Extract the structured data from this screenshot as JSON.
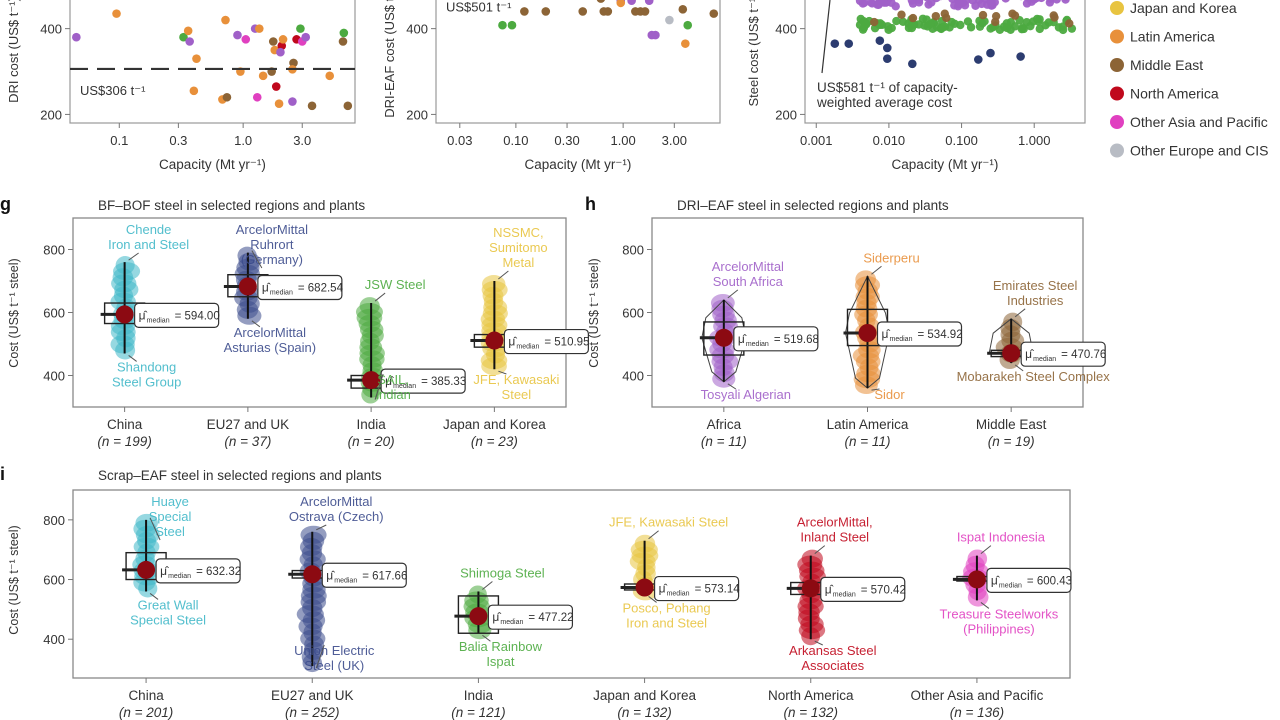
{
  "legend": {
    "items": [
      {
        "label": "Japan and Korea",
        "color": "#e8c440"
      },
      {
        "label": "Latin America",
        "color": "#e8903a"
      },
      {
        "label": "Middle East",
        "color": "#8c6436"
      },
      {
        "label": "North America",
        "color": "#c0081c"
      },
      {
        "label": "Other Asia and Pacific",
        "color": "#e040c0"
      },
      {
        "label": "Other Europe and CIS",
        "color": "#b8bcc4"
      }
    ]
  },
  "chart_data": [
    {
      "id": "d",
      "type": "scatter",
      "title": "",
      "xlabel": "Capacity (Mt yr⁻¹)",
      "ylabel": "DRI cost (US$ t⁻¹)",
      "xscale": "log",
      "xlim": [
        0.04,
        8
      ],
      "xticks": [
        "0.1",
        "0.3",
        "1.0",
        "3.0"
      ],
      "xtick_values": [
        0.1,
        0.3,
        1.0,
        3.0
      ],
      "ylim": [
        180,
        560
      ],
      "yticks": [
        200,
        400
      ],
      "reference_line": {
        "value": 306,
        "label": "US$306 t⁻¹"
      },
      "points": [
        {
          "x": 0.045,
          "y": 380,
          "c": "#a060c8"
        },
        {
          "x": 0.095,
          "y": 435,
          "c": "#e8903a"
        },
        {
          "x": 0.33,
          "y": 480,
          "c": "#40b8c8"
        },
        {
          "x": 0.62,
          "y": 480,
          "c": "#2c3c70"
        },
        {
          "x": 0.33,
          "y": 380,
          "c": "#4caa40"
        },
        {
          "x": 0.36,
          "y": 395,
          "c": "#e8903a"
        },
        {
          "x": 0.37,
          "y": 370,
          "c": "#a060c8"
        },
        {
          "x": 0.42,
          "y": 330,
          "c": "#e8903a"
        },
        {
          "x": 0.4,
          "y": 255,
          "c": "#e8903a"
        },
        {
          "x": 0.72,
          "y": 420,
          "c": "#e8903a"
        },
        {
          "x": 0.68,
          "y": 235,
          "c": "#e8903a"
        },
        {
          "x": 0.74,
          "y": 240,
          "c": "#8c6436"
        },
        {
          "x": 0.9,
          "y": 385,
          "c": "#a060c8"
        },
        {
          "x": 0.95,
          "y": 300,
          "c": "#e8903a"
        },
        {
          "x": 1.05,
          "y": 375,
          "c": "#e040c0"
        },
        {
          "x": 1.25,
          "y": 400,
          "c": "#a060c8"
        },
        {
          "x": 1.35,
          "y": 400,
          "c": "#e8903a"
        },
        {
          "x": 1.3,
          "y": 240,
          "c": "#e040c0"
        },
        {
          "x": 1.45,
          "y": 290,
          "c": "#e8903a"
        },
        {
          "x": 1.7,
          "y": 300,
          "c": "#8c6436"
        },
        {
          "x": 1.75,
          "y": 370,
          "c": "#8c6436"
        },
        {
          "x": 1.8,
          "y": 350,
          "c": "#e8903a"
        },
        {
          "x": 1.85,
          "y": 265,
          "c": "#c0081c"
        },
        {
          "x": 1.95,
          "y": 225,
          "c": "#e8903a"
        },
        {
          "x": 2.05,
          "y": 360,
          "c": "#c0081c"
        },
        {
          "x": 2.0,
          "y": 345,
          "c": "#a060c8"
        },
        {
          "x": 2.1,
          "y": 375,
          "c": "#e8903a"
        },
        {
          "x": 2.5,
          "y": 230,
          "c": "#a060c8"
        },
        {
          "x": 2.55,
          "y": 320,
          "c": "#8c6436"
        },
        {
          "x": 2.5,
          "y": 305,
          "c": "#e8903a"
        },
        {
          "x": 2.7,
          "y": 375,
          "c": "#c0081c"
        },
        {
          "x": 2.9,
          "y": 400,
          "c": "#4caa40"
        },
        {
          "x": 3.0,
          "y": 370,
          "c": "#e040c0"
        },
        {
          "x": 3.2,
          "y": 380,
          "c": "#a060c8"
        },
        {
          "x": 3.6,
          "y": 220,
          "c": "#8c6436"
        },
        {
          "x": 5.0,
          "y": 290,
          "c": "#e8903a"
        },
        {
          "x": 6.5,
          "y": 390,
          "c": "#4caa40"
        },
        {
          "x": 6.4,
          "y": 370,
          "c": "#8c6436"
        },
        {
          "x": 7.0,
          "y": 220,
          "c": "#8c6436"
        }
      ]
    },
    {
      "id": "e",
      "type": "scatter",
      "title": "",
      "xlabel": "Capacity (Mt yr⁻¹)",
      "ylabel": "DRI-EAF cost (US$ t⁻¹)",
      "xscale": "log",
      "xlim": [
        0.018,
        8
      ],
      "xticks": [
        "0.03",
        "0.10",
        "0.30",
        "1.00",
        "3.00"
      ],
      "xtick_values": [
        0.03,
        0.1,
        0.3,
        1.0,
        3.0
      ],
      "ylim": [
        180,
        560
      ],
      "yticks": [
        200,
        400
      ],
      "reference_line": {
        "value": 501,
        "label": "US$501 t⁻¹"
      },
      "points": [
        {
          "x": 0.075,
          "y": 408,
          "c": "#4caa40"
        },
        {
          "x": 0.092,
          "y": 408,
          "c": "#4caa40"
        },
        {
          "x": 0.12,
          "y": 440,
          "c": "#8c6436"
        },
        {
          "x": 0.19,
          "y": 440,
          "c": "#8c6436"
        },
        {
          "x": 0.36,
          "y": 495,
          "c": "#8c6436"
        },
        {
          "x": 0.42,
          "y": 510,
          "c": "#e8903a"
        },
        {
          "x": 0.42,
          "y": 440,
          "c": "#8c6436"
        },
        {
          "x": 0.62,
          "y": 470,
          "c": "#8c6436"
        },
        {
          "x": 0.66,
          "y": 440,
          "c": "#8c6436"
        },
        {
          "x": 0.72,
          "y": 440,
          "c": "#8c6436"
        },
        {
          "x": 0.95,
          "y": 465,
          "c": "#a060c8"
        },
        {
          "x": 0.95,
          "y": 460,
          "c": "#e8903a"
        },
        {
          "x": 1.1,
          "y": 520,
          "c": "#e8c440"
        },
        {
          "x": 1.2,
          "y": 465,
          "c": "#a060c8"
        },
        {
          "x": 1.3,
          "y": 440,
          "c": "#8c6436"
        },
        {
          "x": 1.45,
          "y": 440,
          "c": "#8c6436"
        },
        {
          "x": 1.6,
          "y": 440,
          "c": "#8c6436"
        },
        {
          "x": 1.75,
          "y": 465,
          "c": "#a060c8"
        },
        {
          "x": 1.8,
          "y": 515,
          "c": "#c0081c"
        },
        {
          "x": 1.85,
          "y": 385,
          "c": "#a060c8"
        },
        {
          "x": 2.0,
          "y": 385,
          "c": "#a060c8"
        },
        {
          "x": 2.0,
          "y": 515,
          "c": "#a060c8"
        },
        {
          "x": 2.7,
          "y": 420,
          "c": "#b8bcc4"
        },
        {
          "x": 3.0,
          "y": 510,
          "c": "#8c6436"
        },
        {
          "x": 3.3,
          "y": 500,
          "c": "#e8903a"
        },
        {
          "x": 3.6,
          "y": 445,
          "c": "#8c6436"
        },
        {
          "x": 3.8,
          "y": 365,
          "c": "#e8903a"
        },
        {
          "x": 4.0,
          "y": 408,
          "c": "#4caa40"
        },
        {
          "x": 4.8,
          "y": 485,
          "c": "#e8903a"
        },
        {
          "x": 7.0,
          "y": 435,
          "c": "#8c6436"
        }
      ]
    },
    {
      "id": "f",
      "type": "scatter",
      "title": "",
      "xlabel": "Capacity (Mt yr⁻¹)",
      "ylabel": "Steel cost (US$ t⁻¹)",
      "xscale": "log",
      "xlim": [
        0.0007,
        5
      ],
      "xticks": [
        "0.001",
        "0.010",
        "0.100",
        "1.000"
      ],
      "xtick_values": [
        0.001,
        0.01,
        0.1,
        1.0
      ],
      "ylim": [
        180,
        560
      ],
      "yticks": [
        200,
        400
      ],
      "annotation": "US$581 t⁻¹ of capacity-weighted average cost",
      "bands": [
        {
          "y": 540,
          "c": "#e8903a",
          "n": 60
        },
        {
          "y": 535,
          "c": "#b8bcc4",
          "n": 30
        },
        {
          "y": 545,
          "c": "#e8c440",
          "n": 25
        },
        {
          "y": 530,
          "c": "#c0081c",
          "n": 12
        },
        {
          "y": 465,
          "c": "#a060c8",
          "n": 70
        },
        {
          "y": 410,
          "c": "#4caa40",
          "n": 80
        },
        {
          "y": 425,
          "c": "#8c6436",
          "n": 14
        }
      ],
      "points": [
        {
          "x": 0.0018,
          "y": 365,
          "c": "#2c3c70"
        },
        {
          "x": 0.0028,
          "y": 365,
          "c": "#2c3c70"
        },
        {
          "x": 0.0028,
          "y": 500,
          "c": "#2c3c70"
        },
        {
          "x": 0.0075,
          "y": 372,
          "c": "#2c3c70"
        },
        {
          "x": 0.0095,
          "y": 355,
          "c": "#2c3c70"
        },
        {
          "x": 0.0095,
          "y": 330,
          "c": "#2c3c70"
        },
        {
          "x": 0.021,
          "y": 318,
          "c": "#2c3c70"
        },
        {
          "x": 0.17,
          "y": 328,
          "c": "#2c3c70"
        },
        {
          "x": 0.25,
          "y": 343,
          "c": "#2c3c70"
        },
        {
          "x": 0.65,
          "y": 335,
          "c": "#2c3c70"
        }
      ]
    },
    {
      "id": "g",
      "type": "box-violin",
      "title": "BF–BOF steel in selected regions and plants",
      "ylabel": "Cost (US$ t⁻¹ steel)",
      "ylim": [
        300,
        900
      ],
      "yticks": [
        400,
        600,
        800
      ],
      "groups": [
        {
          "name": "China",
          "n": "(n = 199)",
          "median": 594.0,
          "color": "#40b8c8",
          "min": 470,
          "max": 760,
          "q1": 565,
          "q3": 630,
          "top_label": [
            "Chende",
            "Iron and Steel"
          ],
          "bottom_label": [
            "Shandong",
            "Steel Group"
          ]
        },
        {
          "name": "EU27 and UK",
          "n": "(n = 37)",
          "median": 682.54,
          "color": "#3c4c8c",
          "min": 580,
          "max": 790,
          "q1": 650,
          "q3": 720,
          "top_label": [
            "ArcelorMittal",
            "Ruhrort",
            "(Germany)"
          ],
          "bottom_label": [
            "ArcelorMittal",
            "Asturias (Spain)"
          ]
        },
        {
          "name": "India",
          "n": "(n = 20)",
          "median": 385.33,
          "color": "#4caa40",
          "min": 330,
          "max": 630,
          "q1": 360,
          "q3": 400,
          "top_label": [
            "JSW Steel"
          ],
          "bottom_label": [
            "SAIL,",
            "Indian"
          ]
        },
        {
          "name": "Japan and Korea",
          "n": "(n = 23)",
          "median": 510.95,
          "color": "#e8c440",
          "min": 420,
          "max": 700,
          "q1": 490,
          "q3": 530,
          "top_label": [
            "NSSMC,",
            "Sumitomo",
            "Metal"
          ],
          "bottom_label": [
            "JFE, Kawasaki",
            "Steel"
          ]
        }
      ]
    },
    {
      "id": "h",
      "type": "box-violin",
      "title": "DRI–EAF steel in selected regions and plants",
      "ylabel": "Cost (US$ t⁻¹ steel)",
      "ylim": [
        300,
        900
      ],
      "yticks": [
        400,
        600,
        800
      ],
      "groups": [
        {
          "name": "Africa",
          "n": "(n = 11)",
          "median": 519.68,
          "color": "#a060c8",
          "min": 380,
          "max": 640,
          "q1": 465,
          "q3": 570,
          "top_label": [
            "ArcelorMittal",
            "South Africa"
          ],
          "bottom_label": [
            "Tosyali Algerian"
          ]
        },
        {
          "name": "Latin America",
          "n": "(n = 11)",
          "median": 534.92,
          "color": "#e8903a",
          "min": 360,
          "max": 715,
          "q1": 495,
          "q3": 610,
          "top_label": [
            "Siderperu"
          ],
          "bottom_label": [
            "Sidor"
          ]
        },
        {
          "name": "Middle East",
          "n": "(n = 19)",
          "median": 470.76,
          "color": "#8c6436",
          "min": 440,
          "max": 580,
          "q1": 460,
          "q3": 480,
          "top_label": [
            "Emirates Steel",
            "Industries"
          ],
          "bottom_label": [
            "Mobarakeh Steel Complex"
          ]
        }
      ]
    },
    {
      "id": "i",
      "type": "box-violin",
      "title": "Scrap–EAF steel in selected regions and plants",
      "ylabel": "Cost (US$ t⁻¹ steel)",
      "ylim": [
        270,
        900
      ],
      "yticks": [
        400,
        600,
        800
      ],
      "groups": [
        {
          "name": "China",
          "n": "(n = 201)",
          "median": 632.32,
          "color": "#40b8c8",
          "min": 560,
          "max": 800,
          "q1": 600,
          "q3": 690,
          "top_label": [
            "Huaye",
            "Special",
            "Steel"
          ],
          "bottom_label": [
            "Great Wall",
            "Special Steel"
          ]
        },
        {
          "name": "EU27 and UK",
          "n": "(n = 252)",
          "median": 617.66,
          "color": "#3c4c8c",
          "min": 310,
          "max": 760,
          "q1": 605,
          "q3": 630,
          "top_label": [
            "ArcelorMittal",
            "Ostrava (Czech)"
          ],
          "bottom_label": [
            "Union Electric",
            "Steel (UK)"
          ]
        },
        {
          "name": "India",
          "n": "(n = 121)",
          "median": 477.22,
          "color": "#4caa40",
          "min": 420,
          "max": 560,
          "q1": 420,
          "q3": 545,
          "top_label": [
            "Shimoga Steel"
          ],
          "bottom_label": [
            "Balia Rainbow",
            "Ispat"
          ]
        },
        {
          "name": "Japan and Korea",
          "n": "(n = 132)",
          "median": 573.14,
          "color": "#e8c440",
          "min": 550,
          "max": 730,
          "q1": 565,
          "q3": 585,
          "top_label": [
            "JFE, Kawasaki Steel"
          ],
          "bottom_label": [
            "Posco, Pohang",
            "Iron and Steel"
          ]
        },
        {
          "name": "North America",
          "n": "(n = 132)",
          "median": 570.42,
          "color": "#c0081c",
          "min": 400,
          "max": 680,
          "q1": 550,
          "q3": 590,
          "top_label": [
            "ArcelorMittal,",
            "Inland Steel"
          ],
          "bottom_label": [
            "Arkansas Steel",
            "Associates"
          ]
        },
        {
          "name": "Other Asia and Pacific",
          "n": "(n = 136)",
          "median": 600.43,
          "color": "#e040c0",
          "min": 530,
          "max": 680,
          "q1": 595,
          "q3": 610,
          "top_label": [
            "Ispat Indonesia"
          ],
          "bottom_label": [
            "Treasure Steelworks",
            "(Philippines)"
          ]
        }
      ]
    }
  ],
  "panel_letters": {
    "g": "g",
    "h": "h",
    "i": "i"
  },
  "median_symbol": "μ̂",
  "median_subscript": "median",
  "median_color": "#8c0a12"
}
